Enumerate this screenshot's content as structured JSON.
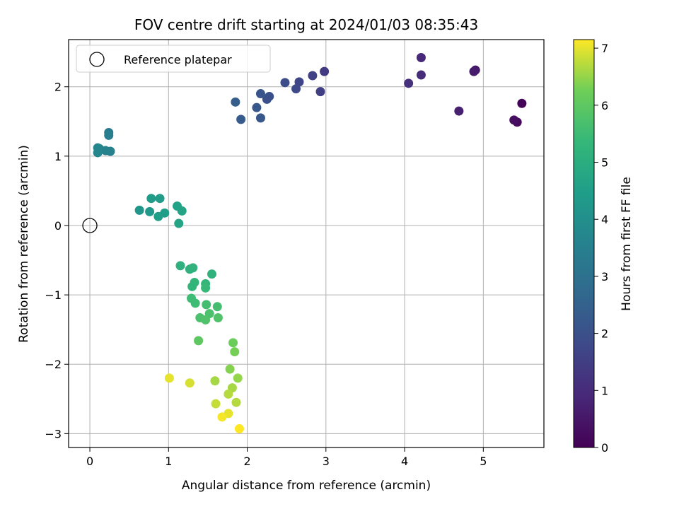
{
  "chart_data": {
    "type": "scatter",
    "title": "FOV centre drift starting at 2024/01/03 08:35:43",
    "xlabel": "Angular distance from reference (arcmin)",
    "ylabel": "Rotation from reference (arcmin)",
    "xlim": [
      -0.27,
      5.77
    ],
    "ylim": [
      -3.2,
      2.68
    ],
    "xticks": [
      0,
      1,
      2,
      3,
      4,
      5
    ],
    "yticks": [
      -3,
      -2,
      -1,
      0,
      1,
      2
    ],
    "grid": true,
    "legend": {
      "placement": "top-left",
      "entries": [
        "Reference platepar"
      ]
    },
    "reference_point": {
      "x": 0,
      "y": 0
    },
    "colorbar": {
      "label": "Hours from first FF file",
      "colormap": "viridis",
      "range": [
        0,
        7.15
      ],
      "ticks": [
        0,
        1,
        2,
        3,
        4,
        5,
        6,
        7
      ]
    },
    "points": [
      {
        "x": 5.49,
        "y": 1.76,
        "hours": 0.1
      },
      {
        "x": 5.43,
        "y": 1.49,
        "hours": 0.2
      },
      {
        "x": 5.39,
        "y": 1.52,
        "hours": 0.3
      },
      {
        "x": 4.9,
        "y": 2.24,
        "hours": 0.5
      },
      {
        "x": 4.88,
        "y": 2.22,
        "hours": 0.6
      },
      {
        "x": 4.69,
        "y": 1.65,
        "hours": 0.7
      },
      {
        "x": 4.21,
        "y": 2.42,
        "hours": 0.9
      },
      {
        "x": 4.21,
        "y": 2.17,
        "hours": 1.0
      },
      {
        "x": 4.05,
        "y": 2.05,
        "hours": 1.1
      },
      {
        "x": 2.98,
        "y": 2.22,
        "hours": 1.4
      },
      {
        "x": 2.93,
        "y": 1.93,
        "hours": 1.5
      },
      {
        "x": 2.83,
        "y": 2.16,
        "hours": 1.6
      },
      {
        "x": 2.66,
        "y": 2.07,
        "hours": 1.7
      },
      {
        "x": 2.62,
        "y": 1.97,
        "hours": 1.8
      },
      {
        "x": 2.48,
        "y": 2.06,
        "hours": 1.9
      },
      {
        "x": 2.28,
        "y": 1.86,
        "hours": 2.0
      },
      {
        "x": 2.25,
        "y": 1.82,
        "hours": 2.0
      },
      {
        "x": 2.17,
        "y": 1.9,
        "hours": 2.1
      },
      {
        "x": 2.17,
        "y": 1.55,
        "hours": 2.2
      },
      {
        "x": 2.12,
        "y": 1.7,
        "hours": 2.2
      },
      {
        "x": 1.92,
        "y": 1.53,
        "hours": 2.3
      },
      {
        "x": 1.85,
        "y": 1.78,
        "hours": 2.4
      },
      {
        "x": 0.24,
        "y": 1.34,
        "hours": 3.3
      },
      {
        "x": 0.24,
        "y": 1.3,
        "hours": 3.4
      },
      {
        "x": 0.26,
        "y": 1.07,
        "hours": 3.5
      },
      {
        "x": 0.2,
        "y": 1.08,
        "hours": 3.6
      },
      {
        "x": 0.12,
        "y": 1.11,
        "hours": 3.6
      },
      {
        "x": 0.1,
        "y": 1.12,
        "hours": 3.7
      },
      {
        "x": 0.1,
        "y": 1.05,
        "hours": 3.7
      },
      {
        "x": 0.63,
        "y": 0.22,
        "hours": 4.2
      },
      {
        "x": 0.76,
        "y": 0.2,
        "hours": 4.3
      },
      {
        "x": 0.78,
        "y": 0.39,
        "hours": 4.4
      },
      {
        "x": 0.89,
        "y": 0.39,
        "hours": 4.4
      },
      {
        "x": 0.87,
        "y": 0.13,
        "hours": 4.5
      },
      {
        "x": 0.95,
        "y": 0.18,
        "hours": 4.5
      },
      {
        "x": 1.11,
        "y": 0.28,
        "hours": 4.6
      },
      {
        "x": 1.17,
        "y": 0.21,
        "hours": 4.7
      },
      {
        "x": 1.13,
        "y": 0.03,
        "hours": 4.7
      },
      {
        "x": 1.15,
        "y": -0.58,
        "hours": 5.1
      },
      {
        "x": 1.27,
        "y": -0.63,
        "hours": 5.1
      },
      {
        "x": 1.31,
        "y": -0.61,
        "hours": 5.2
      },
      {
        "x": 1.55,
        "y": -0.7,
        "hours": 5.2
      },
      {
        "x": 1.33,
        "y": -0.82,
        "hours": 5.3
      },
      {
        "x": 1.3,
        "y": -0.88,
        "hours": 5.3
      },
      {
        "x": 1.47,
        "y": -0.84,
        "hours": 5.3
      },
      {
        "x": 1.47,
        "y": -0.9,
        "hours": 5.4
      },
      {
        "x": 1.29,
        "y": -1.05,
        "hours": 5.5
      },
      {
        "x": 1.34,
        "y": -1.12,
        "hours": 5.5
      },
      {
        "x": 1.48,
        "y": -1.14,
        "hours": 5.6
      },
      {
        "x": 1.62,
        "y": -1.17,
        "hours": 5.6
      },
      {
        "x": 1.52,
        "y": -1.27,
        "hours": 5.7
      },
      {
        "x": 1.4,
        "y": -1.33,
        "hours": 5.7
      },
      {
        "x": 1.47,
        "y": -1.36,
        "hours": 5.8
      },
      {
        "x": 1.63,
        "y": -1.33,
        "hours": 5.8
      },
      {
        "x": 1.38,
        "y": -1.66,
        "hours": 6.0
      },
      {
        "x": 1.82,
        "y": -1.69,
        "hours": 6.2
      },
      {
        "x": 1.84,
        "y": -1.82,
        "hours": 6.3
      },
      {
        "x": 1.78,
        "y": -2.07,
        "hours": 6.4
      },
      {
        "x": 1.88,
        "y": -2.2,
        "hours": 6.5
      },
      {
        "x": 1.59,
        "y": -2.24,
        "hours": 6.6
      },
      {
        "x": 1.81,
        "y": -2.34,
        "hours": 6.6
      },
      {
        "x": 1.76,
        "y": -2.43,
        "hours": 6.7
      },
      {
        "x": 1.86,
        "y": -2.55,
        "hours": 6.7
      },
      {
        "x": 1.6,
        "y": -2.57,
        "hours": 6.8
      },
      {
        "x": 1.27,
        "y": -2.27,
        "hours": 6.9
      },
      {
        "x": 1.01,
        "y": -2.2,
        "hours": 7.0
      },
      {
        "x": 1.76,
        "y": -2.71,
        "hours": 7.0
      },
      {
        "x": 1.68,
        "y": -2.76,
        "hours": 7.1
      },
      {
        "x": 1.9,
        "y": -2.93,
        "hours": 7.15
      }
    ]
  }
}
